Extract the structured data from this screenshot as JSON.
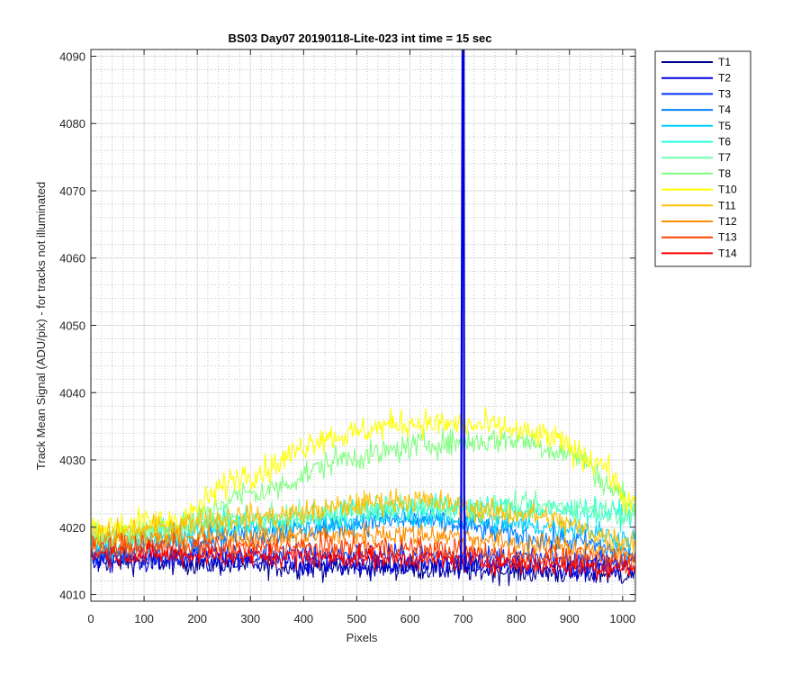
{
  "chart_data": {
    "type": "line",
    "title": "BS03 Day07 20190118-Lite-023 int time = 15 sec",
    "xlabel": "Pixels",
    "ylabel": "Track Mean Signal (ADU/pix) - for tracks not illuminated",
    "xlim": [
      0,
      1024
    ],
    "ylim": [
      4009,
      4091
    ],
    "xticks": [
      0,
      100,
      200,
      300,
      400,
      500,
      600,
      700,
      800,
      900,
      1000
    ],
    "yticks": [
      4010,
      4020,
      4030,
      4040,
      4050,
      4060,
      4070,
      4080,
      4090
    ],
    "xtick_labels": [
      "0",
      "100",
      "200",
      "300",
      "400",
      "500",
      "600",
      "700",
      "800",
      "900",
      "1000"
    ],
    "ytick_labels": [
      "4010",
      "4020",
      "4030",
      "4040",
      "4050",
      "4060",
      "4070",
      "4080",
      "4090"
    ],
    "grid": "major and minor",
    "legend_position": "outside-right-top",
    "anomaly": {
      "series": "T1",
      "x": 700,
      "y_peak": 4091,
      "y_low": 4025
    },
    "series": [
      {
        "name": "T1",
        "color": "#00008f",
        "profile": [
          [
            0,
            4015
          ],
          [
            500,
            4014
          ],
          [
            1024,
            4013
          ]
        ],
        "noise": 1.6
      },
      {
        "name": "T2",
        "color": "#0000df",
        "profile": [
          [
            0,
            4015
          ],
          [
            500,
            4014.5
          ],
          [
            1024,
            4014
          ]
        ],
        "noise": 1.6
      },
      {
        "name": "T3",
        "color": "#0030ff",
        "profile": [
          [
            0,
            4016
          ],
          [
            500,
            4016
          ],
          [
            1024,
            4015
          ]
        ],
        "noise": 1.6
      },
      {
        "name": "T4",
        "color": "#0080ff",
        "profile": [
          [
            0,
            4016
          ],
          [
            300,
            4019
          ],
          [
            600,
            4021
          ],
          [
            900,
            4018
          ],
          [
            1024,
            4016
          ]
        ],
        "noise": 1.6
      },
      {
        "name": "T5",
        "color": "#00cfff",
        "profile": [
          [
            0,
            4017
          ],
          [
            300,
            4020
          ],
          [
            600,
            4021.5
          ],
          [
            900,
            4020
          ],
          [
            1024,
            4018
          ]
        ],
        "noise": 1.6
      },
      {
        "name": "T6",
        "color": "#20ffdf",
        "profile": [
          [
            0,
            4018
          ],
          [
            300,
            4021
          ],
          [
            600,
            4023
          ],
          [
            900,
            4022.5
          ],
          [
            1024,
            4022
          ]
        ],
        "noise": 1.7
      },
      {
        "name": "T7",
        "color": "#70ffb0",
        "profile": [
          [
            0,
            4018
          ],
          [
            300,
            4021
          ],
          [
            600,
            4023
          ],
          [
            900,
            4023
          ],
          [
            1024,
            4022
          ]
        ],
        "noise": 1.7
      },
      {
        "name": "T8",
        "color": "#80ff80",
        "profile": [
          [
            0,
            4019
          ],
          [
            150,
            4020
          ],
          [
            300,
            4025
          ],
          [
            500,
            4030.5
          ],
          [
            650,
            4032.5
          ],
          [
            800,
            4033
          ],
          [
            900,
            4031
          ],
          [
            1000,
            4025
          ],
          [
            1024,
            4022
          ]
        ],
        "noise": 1.8
      },
      {
        "name": "T10",
        "color": "#ffff00",
        "profile": [
          [
            0,
            4020
          ],
          [
            150,
            4021
          ],
          [
            300,
            4028
          ],
          [
            450,
            4033.5
          ],
          [
            600,
            4035.5
          ],
          [
            750,
            4035
          ],
          [
            850,
            4033.5
          ],
          [
            950,
            4030
          ],
          [
            1024,
            4023
          ]
        ],
        "noise": 1.9
      },
      {
        "name": "T11",
        "color": "#ffbf00",
        "profile": [
          [
            0,
            4019
          ],
          [
            300,
            4021.5
          ],
          [
            600,
            4024
          ],
          [
            800,
            4022
          ],
          [
            1024,
            4018
          ]
        ],
        "noise": 1.7
      },
      {
        "name": "T12",
        "color": "#ff8f00",
        "profile": [
          [
            0,
            4018
          ],
          [
            300,
            4018.5
          ],
          [
            600,
            4019
          ],
          [
            900,
            4017
          ],
          [
            1024,
            4016
          ]
        ],
        "noise": 1.6
      },
      {
        "name": "T13",
        "color": "#ff4000",
        "profile": [
          [
            0,
            4017
          ],
          [
            500,
            4017
          ],
          [
            1024,
            4015
          ]
        ],
        "noise": 1.6
      },
      {
        "name": "T14",
        "color": "#ff0000",
        "profile": [
          [
            0,
            4016
          ],
          [
            500,
            4015.5
          ],
          [
            1024,
            4014
          ]
        ],
        "noise": 1.5
      }
    ]
  }
}
